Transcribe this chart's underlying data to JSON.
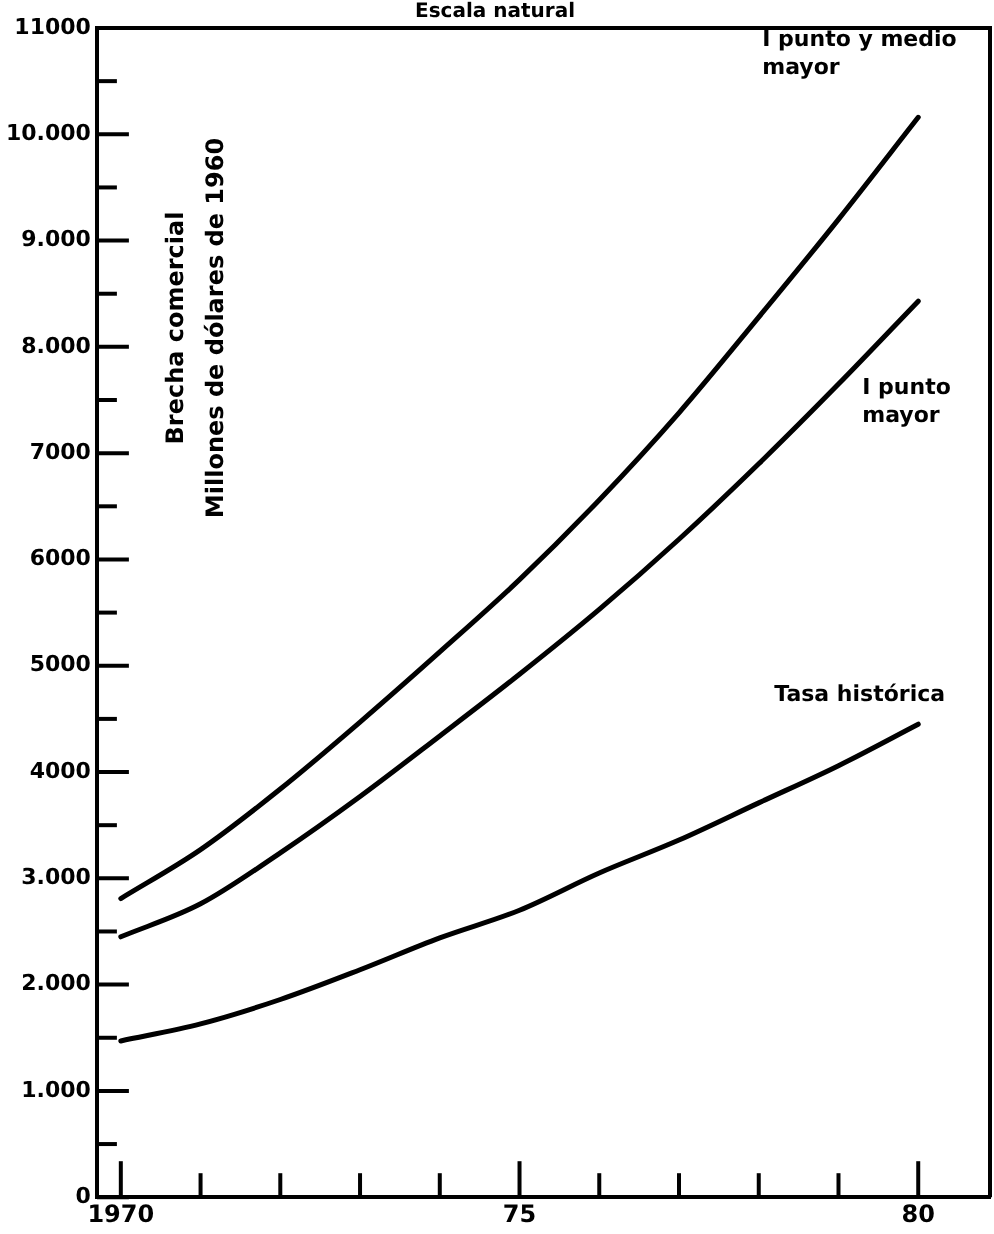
{
  "chart_data": {
    "type": "line",
    "title": "Escala natural",
    "ylabel": "Brecha comercial\nMillones de dólares de 1960",
    "x": [
      1970,
      1971,
      1972,
      1973,
      1974,
      1975,
      1976,
      1977,
      1978,
      1979,
      1980
    ],
    "series": [
      {
        "name": "I punto y medio mayor",
        "color": "#000000",
        "values": [
          2810,
          3270,
          3840,
          4470,
          5130,
          5810,
          6560,
          7380,
          8280,
          9200,
          10160
        ]
      },
      {
        "name": "I punto mayor",
        "color": "#000000",
        "values": [
          2450,
          2760,
          3240,
          3770,
          4340,
          4920,
          5530,
          6190,
          6900,
          7650,
          8430
        ]
      },
      {
        "name": "Tasa histórica",
        "color": "#000000",
        "values": [
          1470,
          1630,
          1860,
          2140,
          2440,
          2700,
          3050,
          3360,
          3710,
          4060,
          4450
        ]
      }
    ],
    "xlim": [
      1969.7,
      1980.9
    ],
    "xticks": [
      {
        "value": 1970,
        "label": "1970"
      },
      {
        "value": 1971,
        "label": null
      },
      {
        "value": 1972,
        "label": null
      },
      {
        "value": 1973,
        "label": null
      },
      {
        "value": 1974,
        "label": null
      },
      {
        "value": 1975,
        "label": "75"
      },
      {
        "value": 1976,
        "label": null
      },
      {
        "value": 1977,
        "label": null
      },
      {
        "value": 1978,
        "label": null
      },
      {
        "value": 1979,
        "label": null
      },
      {
        "value": 1980,
        "label": "80"
      }
    ],
    "ylim": [
      0,
      11000
    ],
    "yticks": [
      0,
      {
        "value": 500,
        "label": null
      },
      {
        "value": 1000,
        "label": "1.000"
      },
      {
        "value": 1500,
        "label": null
      },
      {
        "value": 2000,
        "label": "2.000"
      },
      {
        "value": 2500,
        "label": null
      },
      {
        "value": 3000,
        "label": "3.000"
      },
      {
        "value": 3500,
        "label": null
      },
      4000,
      {
        "value": 4500,
        "label": null
      },
      5000,
      {
        "value": 5500,
        "label": null
      },
      6000,
      {
        "value": 6500,
        "label": null
      },
      7000,
      {
        "value": 7500,
        "label": null
      },
      {
        "value": 8000,
        "label": "8.000"
      },
      {
        "value": 8500,
        "label": null
      },
      {
        "value": 9000,
        "label": "9.000"
      },
      {
        "value": 9500,
        "label": null
      },
      {
        "value": 10000,
        "label": "10.000"
      },
      {
        "value": 10500,
        "label": null
      },
      11000
    ],
    "grid": false,
    "legend": false,
    "marker": "none",
    "line_style": "solid"
  }
}
